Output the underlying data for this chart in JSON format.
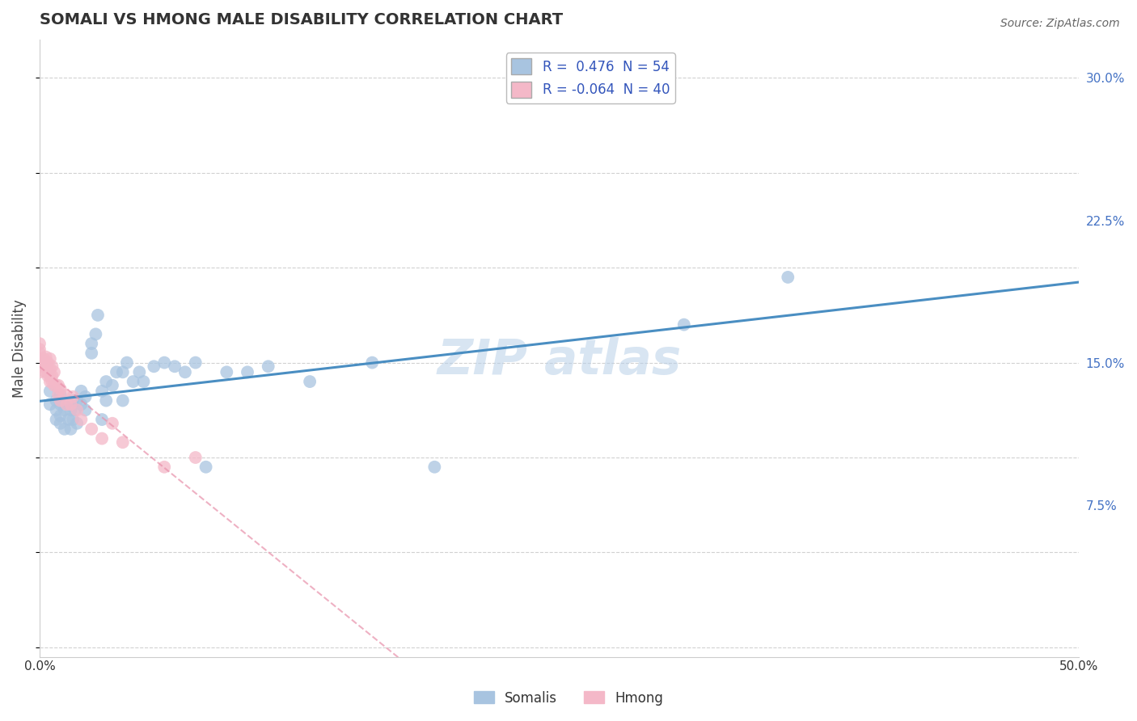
{
  "title": "SOMALI VS HMONG MALE DISABILITY CORRELATION CHART",
  "source": "Source: ZipAtlas.com",
  "ylabel": "Male Disability",
  "xlim": [
    0.0,
    0.5
  ],
  "ylim": [
    -0.005,
    0.32
  ],
  "xtick_positions": [
    0.0,
    0.1,
    0.2,
    0.3,
    0.4,
    0.5
  ],
  "xtick_labels": [
    "0.0%",
    "",
    "",
    "",
    "",
    "50.0%"
  ],
  "ytick_vals": [
    0.0,
    0.075,
    0.15,
    0.225,
    0.3
  ],
  "ytick_labels": [
    "",
    "7.5%",
    "15.0%",
    "22.5%",
    "30.0%"
  ],
  "somali_R": 0.476,
  "somali_N": 54,
  "hmong_R": -0.064,
  "hmong_N": 40,
  "somali_color": "#a8c4e0",
  "hmong_color": "#f4b8c8",
  "somali_line_color": "#4a8ec2",
  "hmong_line_color": "#e890aa",
  "somali_x": [
    0.005,
    0.005,
    0.008,
    0.008,
    0.008,
    0.01,
    0.01,
    0.01,
    0.01,
    0.012,
    0.012,
    0.014,
    0.014,
    0.015,
    0.015,
    0.016,
    0.016,
    0.017,
    0.018,
    0.018,
    0.02,
    0.02,
    0.022,
    0.022,
    0.025,
    0.025,
    0.027,
    0.028,
    0.03,
    0.03,
    0.032,
    0.032,
    0.035,
    0.037,
    0.04,
    0.04,
    0.042,
    0.045,
    0.048,
    0.05,
    0.055,
    0.06,
    0.065,
    0.07,
    0.075,
    0.08,
    0.09,
    0.1,
    0.11,
    0.13,
    0.16,
    0.19,
    0.31,
    0.36
  ],
  "somali_y": [
    0.128,
    0.135,
    0.12,
    0.125,
    0.13,
    0.118,
    0.122,
    0.128,
    0.133,
    0.115,
    0.125,
    0.12,
    0.128,
    0.115,
    0.125,
    0.13,
    0.12,
    0.125,
    0.118,
    0.13,
    0.128,
    0.135,
    0.125,
    0.132,
    0.155,
    0.16,
    0.165,
    0.175,
    0.12,
    0.135,
    0.13,
    0.14,
    0.138,
    0.145,
    0.13,
    0.145,
    0.15,
    0.14,
    0.145,
    0.14,
    0.148,
    0.15,
    0.148,
    0.145,
    0.15,
    0.095,
    0.145,
    0.145,
    0.148,
    0.14,
    0.15,
    0.095,
    0.17,
    0.195
  ],
  "hmong_x": [
    0.0,
    0.0,
    0.0,
    0.0,
    0.0,
    0.0,
    0.0,
    0.002,
    0.002,
    0.003,
    0.003,
    0.003,
    0.004,
    0.004,
    0.005,
    0.005,
    0.005,
    0.005,
    0.006,
    0.006,
    0.006,
    0.007,
    0.007,
    0.008,
    0.009,
    0.009,
    0.01,
    0.01,
    0.012,
    0.013,
    0.015,
    0.016,
    0.018,
    0.02,
    0.025,
    0.03,
    0.035,
    0.04,
    0.06,
    0.075
  ],
  "hmong_y": [
    0.145,
    0.148,
    0.15,
    0.152,
    0.155,
    0.157,
    0.16,
    0.148,
    0.152,
    0.145,
    0.148,
    0.153,
    0.143,
    0.15,
    0.14,
    0.143,
    0.147,
    0.152,
    0.14,
    0.143,
    0.148,
    0.138,
    0.145,
    0.138,
    0.133,
    0.138,
    0.13,
    0.136,
    0.133,
    0.128,
    0.128,
    0.132,
    0.125,
    0.12,
    0.115,
    0.11,
    0.118,
    0.108,
    0.095,
    0.1
  ]
}
